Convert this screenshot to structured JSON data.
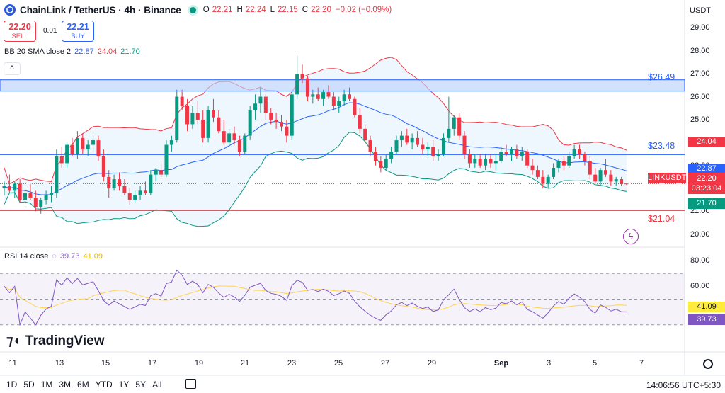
{
  "header": {
    "title": "ChainLink / TetherUS · 4h · Binance",
    "ohlc": [
      {
        "k": "O",
        "v": "22.21"
      },
      {
        "k": "H",
        "v": "22.24"
      },
      {
        "k": "L",
        "v": "22.15"
      },
      {
        "k": "C",
        "v": "22.20"
      },
      {
        "k": "",
        "v": "−0.02 (−0.09%)"
      }
    ],
    "status_color": "#089981"
  },
  "trade": {
    "sell_price": "22.20",
    "sell_label": "SELL",
    "spread": "0.01",
    "buy_price": "22.21",
    "buy_label": "BUY"
  },
  "indicators": {
    "bb": {
      "name": "BB 20 SMA close 2",
      "v1": "22.87",
      "v2": "24.04",
      "v3": "21.70"
    },
    "rsi": {
      "name": "RSI 14 close",
      "v1": "39.73",
      "v2": "41.09"
    }
  },
  "currency_label": "USDT",
  "price_axis": [
    "29.00",
    "28.00",
    "27.00",
    "26.00",
    "25.00",
    "24.00",
    "23.00",
    "22.00",
    "21.00",
    "20.00"
  ],
  "rsi_axis": [
    "80.00",
    "60.00"
  ],
  "time_axis": [
    "11",
    "13",
    "15",
    "17",
    "19",
    "21",
    "23",
    "25",
    "27",
    "29",
    "Sep",
    "3",
    "5",
    "7"
  ],
  "levels": [
    {
      "label": "$26.49",
      "color": "#2962ff"
    },
    {
      "label": "$23.48",
      "color": "#2962ff"
    },
    {
      "label": "$21.04",
      "color": "#f23645"
    }
  ],
  "price_tags": [
    {
      "text": "24.04",
      "color": "#f23645",
      "price": 24.04
    },
    {
      "text": "22.87",
      "color": "#2962ff",
      "price": 22.87
    },
    {
      "text": "21.70",
      "color": "#089981",
      "price": 21.7
    }
  ],
  "current": {
    "symbol": "LINKUSDT",
    "price": "22.20",
    "countdown": "03:23:04",
    "color": "#f23645"
  },
  "rsi_tags": [
    {
      "text": "41.09",
      "bg": "#ffeb3b",
      "fg": "#131722",
      "value": 41.09
    },
    {
      "text": "39.73",
      "bg": "#7e57c2",
      "fg": "#ffffff",
      "value": 39.73
    }
  ],
  "ranges": [
    "1D",
    "5D",
    "1M",
    "3M",
    "6M",
    "YTD",
    "1Y",
    "5Y",
    "All"
  ],
  "clock": "14:06:56 UTC+5:30",
  "brand": "TradingView",
  "colors": {
    "up": "#089981",
    "down": "#f23645",
    "bb_upper": "#f23645",
    "bb_basis": "#2962ff",
    "bb_lower": "#089981",
    "rsi": "#7e57c2",
    "rsi_ma": "#ffd54f"
  },
  "chart_data": {
    "type": "candlestick",
    "price_range": [
      19.5,
      29.6
    ],
    "rsi_range": [
      10,
      90
    ],
    "levels": [
      26.49,
      23.48,
      21.04
    ],
    "candles": [
      [
        22.0,
        22.3,
        21.7,
        22.1
      ],
      [
        22.1,
        22.6,
        21.8,
        21.9
      ],
      [
        21.9,
        22.3,
        21.6,
        22.2
      ],
      [
        22.2,
        22.4,
        21.4,
        21.5
      ],
      [
        21.5,
        21.9,
        21.2,
        21.8
      ],
      [
        21.8,
        22.2,
        21.5,
        21.6
      ],
      [
        21.6,
        21.9,
        21.0,
        21.2
      ],
      [
        21.2,
        21.6,
        20.9,
        21.5
      ],
      [
        21.5,
        21.9,
        21.3,
        21.7
      ],
      [
        21.7,
        22.1,
        21.4,
        21.8
      ],
      [
        21.8,
        23.7,
        21.6,
        23.4
      ],
      [
        23.4,
        23.8,
        22.9,
        23.1
      ],
      [
        23.1,
        24.0,
        22.9,
        23.9
      ],
      [
        23.9,
        24.2,
        23.4,
        23.5
      ],
      [
        23.5,
        24.5,
        23.3,
        24.2
      ],
      [
        24.2,
        24.4,
        23.5,
        23.7
      ],
      [
        23.7,
        24.1,
        23.4,
        23.9
      ],
      [
        23.9,
        24.3,
        23.6,
        24.1
      ],
      [
        24.1,
        24.3,
        23.2,
        23.4
      ],
      [
        23.4,
        23.7,
        22.3,
        22.5
      ],
      [
        22.5,
        22.8,
        21.6,
        22.0
      ],
      [
        22.0,
        22.6,
        21.9,
        22.4
      ],
      [
        22.4,
        22.7,
        21.9,
        22.1
      ],
      [
        22.1,
        22.4,
        21.7,
        21.8
      ],
      [
        21.8,
        22.0,
        21.3,
        21.5
      ],
      [
        21.5,
        21.9,
        21.4,
        21.7
      ],
      [
        21.7,
        22.1,
        21.5,
        21.9
      ],
      [
        21.9,
        22.3,
        21.7,
        21.8
      ],
      [
        21.8,
        22.8,
        21.7,
        22.6
      ],
      [
        22.6,
        22.9,
        22.3,
        22.8
      ],
      [
        22.8,
        23.1,
        22.5,
        22.6
      ],
      [
        22.6,
        24.1,
        22.5,
        23.9
      ],
      [
        23.9,
        24.3,
        23.6,
        24.1
      ],
      [
        24.1,
        26.3,
        24.0,
        26.0
      ],
      [
        26.0,
        26.3,
        25.4,
        25.6
      ],
      [
        25.6,
        25.9,
        24.5,
        24.8
      ],
      [
        24.8,
        25.6,
        24.6,
        25.3
      ],
      [
        25.3,
        25.8,
        24.8,
        25.0
      ],
      [
        25.0,
        25.4,
        24.0,
        24.2
      ],
      [
        24.2,
        25.6,
        24.0,
        25.4
      ],
      [
        25.4,
        25.9,
        24.9,
        25.1
      ],
      [
        25.1,
        25.4,
        24.4,
        24.5
      ],
      [
        24.5,
        25.0,
        23.9,
        24.0
      ],
      [
        24.0,
        24.6,
        23.8,
        24.4
      ],
      [
        24.4,
        24.7,
        23.9,
        24.1
      ],
      [
        24.1,
        24.3,
        23.4,
        23.6
      ],
      [
        23.6,
        24.4,
        23.5,
        24.3
      ],
      [
        24.3,
        25.6,
        24.1,
        25.4
      ],
      [
        25.4,
        26.1,
        25.0,
        25.7
      ],
      [
        25.7,
        26.4,
        25.3,
        26.0
      ],
      [
        26.0,
        26.1,
        25.0,
        25.3
      ],
      [
        25.3,
        25.5,
        24.8,
        25.0
      ],
      [
        25.0,
        25.3,
        24.6,
        24.9
      ],
      [
        24.9,
        25.2,
        24.5,
        24.7
      ],
      [
        24.7,
        25.0,
        24.0,
        24.3
      ],
      [
        24.3,
        26.2,
        24.1,
        26.1
      ],
      [
        26.1,
        27.8,
        25.9,
        27.0
      ],
      [
        27.0,
        27.4,
        26.6,
        26.8
      ],
      [
        26.8,
        26.9,
        25.8,
        26.0
      ],
      [
        26.0,
        26.3,
        25.7,
        26.1
      ],
      [
        26.1,
        26.4,
        25.8,
        25.9
      ],
      [
        25.9,
        26.3,
        25.6,
        26.2
      ],
      [
        26.2,
        26.5,
        25.9,
        26.0
      ],
      [
        26.0,
        26.2,
        25.4,
        25.6
      ],
      [
        25.6,
        26.0,
        25.3,
        25.8
      ],
      [
        25.8,
        26.3,
        25.6,
        26.1
      ],
      [
        26.1,
        26.4,
        25.8,
        25.9
      ],
      [
        25.9,
        26.0,
        25.1,
        25.2
      ],
      [
        25.2,
        25.5,
        24.4,
        24.6
      ],
      [
        24.6,
        24.8,
        24.0,
        24.1
      ],
      [
        24.1,
        24.3,
        23.4,
        23.6
      ],
      [
        23.6,
        23.8,
        23.0,
        23.2
      ],
      [
        23.2,
        23.4,
        22.7,
        22.9
      ],
      [
        22.9,
        23.5,
        22.8,
        23.3
      ],
      [
        23.3,
        23.8,
        23.1,
        23.6
      ],
      [
        23.6,
        24.3,
        23.5,
        24.1
      ],
      [
        24.1,
        24.5,
        23.8,
        24.3
      ],
      [
        24.3,
        24.6,
        23.9,
        24.0
      ],
      [
        24.0,
        24.4,
        23.7,
        24.2
      ],
      [
        24.2,
        24.5,
        23.8,
        23.9
      ],
      [
        23.9,
        24.2,
        23.5,
        23.7
      ],
      [
        23.7,
        24.0,
        23.4,
        23.8
      ],
      [
        23.8,
        24.1,
        23.2,
        23.4
      ],
      [
        23.4,
        23.7,
        23.2,
        23.5
      ],
      [
        23.5,
        24.4,
        23.4,
        24.2
      ],
      [
        24.2,
        26.0,
        24.0,
        24.6
      ],
      [
        24.6,
        25.2,
        24.3,
        25.1
      ],
      [
        25.1,
        25.3,
        24.1,
        24.3
      ],
      [
        24.3,
        24.5,
        23.3,
        23.5
      ],
      [
        23.5,
        23.7,
        22.9,
        23.1
      ],
      [
        23.1,
        23.5,
        22.9,
        23.3
      ],
      [
        23.3,
        23.5,
        22.9,
        23.0
      ],
      [
        23.0,
        23.5,
        22.8,
        23.3
      ],
      [
        23.3,
        23.5,
        22.9,
        23.1
      ],
      [
        23.1,
        23.5,
        22.8,
        23.2
      ],
      [
        23.2,
        23.8,
        23.1,
        23.6
      ],
      [
        23.6,
        23.9,
        23.4,
        23.5
      ],
      [
        23.5,
        23.8,
        23.2,
        23.7
      ],
      [
        23.7,
        23.9,
        23.3,
        23.4
      ],
      [
        23.4,
        23.8,
        23.2,
        23.6
      ],
      [
        23.6,
        23.7,
        22.9,
        23.0
      ],
      [
        23.0,
        23.3,
        22.6,
        22.8
      ],
      [
        22.8,
        23.0,
        22.4,
        22.5
      ],
      [
        22.5,
        22.8,
        22.0,
        22.2
      ],
      [
        22.2,
        22.6,
        22.0,
        22.5
      ],
      [
        22.5,
        23.1,
        22.4,
        22.9
      ],
      [
        22.9,
        23.3,
        22.7,
        23.2
      ],
      [
        23.2,
        23.4,
        22.8,
        23.0
      ],
      [
        23.0,
        23.6,
        22.9,
        23.4
      ],
      [
        23.4,
        23.9,
        23.3,
        23.7
      ],
      [
        23.7,
        23.9,
        23.3,
        23.5
      ],
      [
        23.5,
        23.6,
        23.0,
        23.2
      ],
      [
        23.2,
        23.4,
        22.4,
        22.6
      ],
      [
        22.6,
        22.9,
        22.2,
        22.3
      ],
      [
        22.3,
        22.9,
        22.1,
        22.8
      ],
      [
        22.8,
        23.3,
        22.5,
        22.6
      ],
      [
        22.6,
        22.8,
        22.1,
        22.3
      ],
      [
        22.3,
        22.5,
        22.1,
        22.4
      ],
      [
        22.4,
        22.5,
        22.1,
        22.2
      ],
      [
        22.21,
        22.24,
        22.15,
        22.2
      ]
    ]
  }
}
